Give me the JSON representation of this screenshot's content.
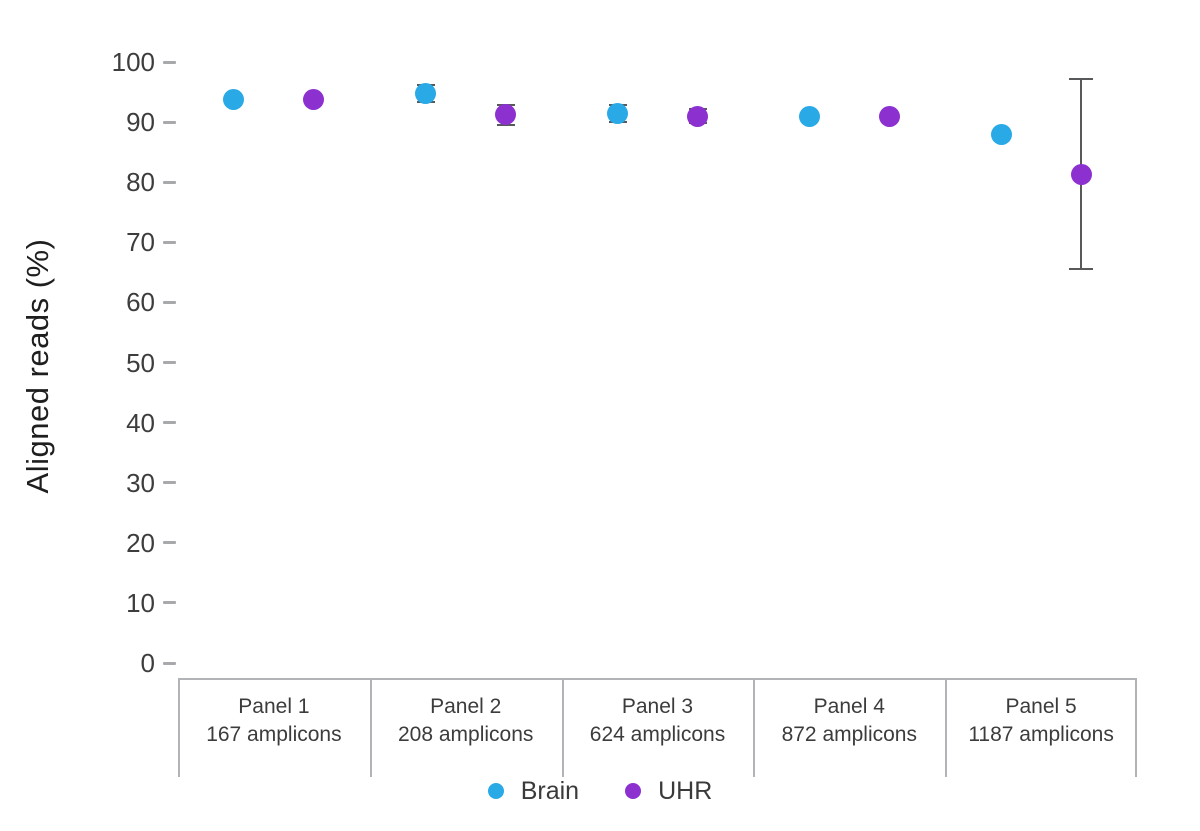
{
  "chart_data": {
    "type": "scatter",
    "title": "",
    "xlabel": "",
    "ylabel": "Aligned reads (%)",
    "ylim": [
      0,
      100
    ],
    "ytick_step": 10,
    "grid": false,
    "legend_position": "bottom-center",
    "categories": [
      {
        "panel": "Panel 1",
        "amplicons": "167 amplicons"
      },
      {
        "panel": "Panel 2",
        "amplicons": "208 amplicons"
      },
      {
        "panel": "Panel 3",
        "amplicons": "624 amplicons"
      },
      {
        "panel": "Panel 4",
        "amplicons": "872 amplicons"
      },
      {
        "panel": "Panel 5",
        "amplicons": "1187 amplicons"
      }
    ],
    "series": [
      {
        "name": "Brain",
        "color": "#29a9e6",
        "values": [
          93.8,
          94.7,
          91.4,
          90.9,
          87.9
        ],
        "errors": [
          0,
          1.4,
          1.4,
          0,
          0
        ]
      },
      {
        "name": "UHR",
        "color": "#8c30d0",
        "values": [
          93.8,
          91.2,
          91.0,
          90.9,
          81.3
        ],
        "errors": [
          0,
          1.6,
          1.2,
          0,
          15.8
        ]
      }
    ],
    "error_bar_color": "#58595b"
  },
  "legend": {
    "items": [
      {
        "label": "Brain",
        "color": "#29a9e6"
      },
      {
        "label": "UHR",
        "color": "#8c30d0"
      }
    ]
  }
}
